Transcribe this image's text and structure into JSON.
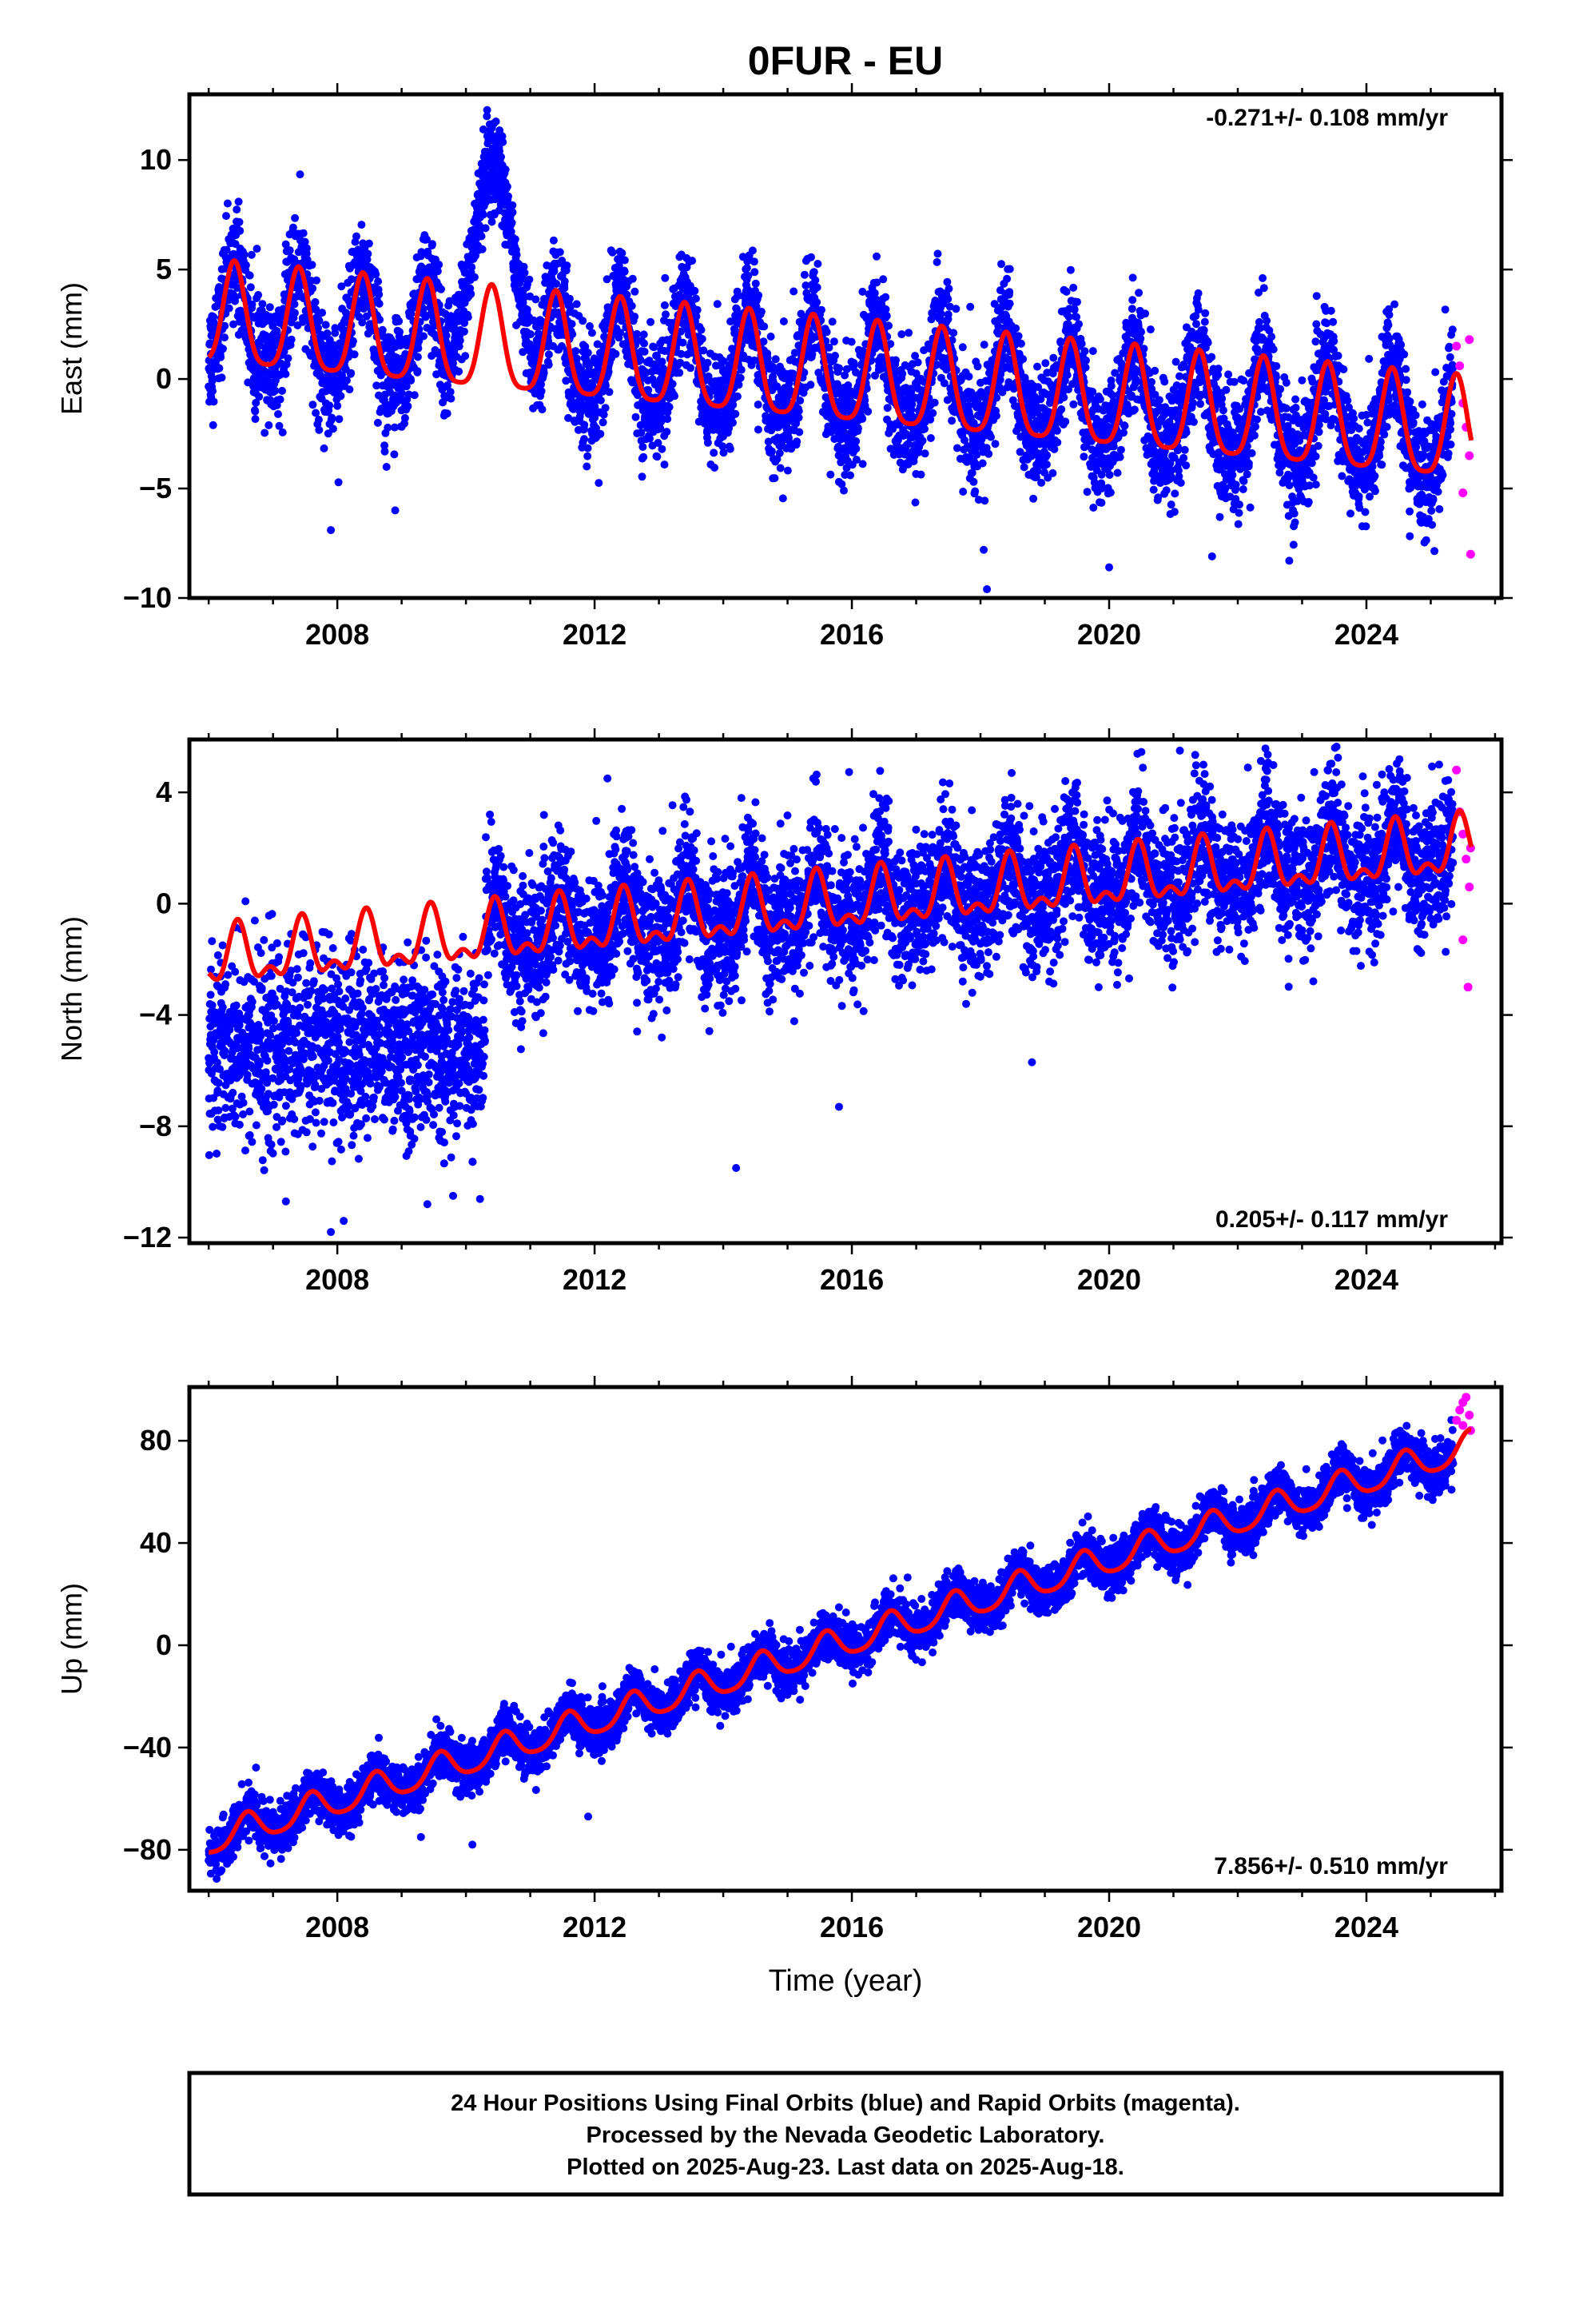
{
  "title": "0FUR - EU",
  "xlabel": "Time (year)",
  "colors": {
    "final": "#0000ff",
    "rapid": "#ff00ff",
    "model": "#ff0000",
    "frame": "#000000"
  },
  "footer": {
    "line1": "24 Hour Positions Using Final Orbits (blue) and Rapid Orbits (magenta).",
    "line2": "Processed by the Nevada Geodetic Laboratory.",
    "line3": "Plotted on 2025-Aug-23. Last data on 2025-Aug-18."
  },
  "chart_data": [
    {
      "type": "scatter",
      "name": "east",
      "ylabel": "East (mm)",
      "rate_label": "-0.271+/- 0.108 mm/yr",
      "rate_position": "top-right",
      "xlim": [
        2005.7,
        2026.1
      ],
      "ylim": [
        -10,
        13
      ],
      "xticks": [
        2008,
        2012,
        2016,
        2020,
        2024
      ],
      "xtick_labels": [
        "2008",
        "2012",
        "2016",
        "2020",
        "2024"
      ],
      "yticks": [
        -10,
        -5,
        0,
        5,
        10
      ],
      "ytick_labels": [
        "−10",
        "−5",
        "0",
        "5",
        "10"
      ],
      "data_start": 2006.0,
      "data_end": 2025.35,
      "rapid_start": 2025.35,
      "rapid_end": 2025.63,
      "model": {
        "rate": -0.271,
        "offset_at_2016": 0.0,
        "annual_amp": 2.3,
        "annual_peak": 0.4,
        "semiannual_amp": 0.5
      },
      "noise_mm": 1.3,
      "anomaly": {
        "start": 2009.7,
        "peak": 2010.45,
        "end": 2011.1,
        "peak_value": 10.5
      },
      "outliers": [
        [
          2018.05,
          -7.8
        ],
        [
          2018.1,
          -9.6
        ],
        [
          2007.9,
          -6.9
        ],
        [
          2008.9,
          -6.0
        ],
        [
          2021.6,
          -8.1
        ],
        [
          2022.8,
          -8.3
        ],
        [
          2020.0,
          -8.6
        ]
      ],
      "rapid_points": [
        [
          2025.4,
          1.5
        ],
        [
          2025.45,
          0.6
        ],
        [
          2025.5,
          -1.1
        ],
        [
          2025.55,
          -2.2
        ],
        [
          2025.6,
          -3.5
        ],
        [
          2025.5,
          -5.2
        ],
        [
          2025.62,
          -8.0
        ],
        [
          2025.6,
          1.8
        ]
      ]
    },
    {
      "type": "scatter",
      "name": "north",
      "ylabel": "North (mm)",
      "rate_label": "0.205+/- 0.117 mm/yr",
      "rate_position": "bottom-right",
      "xlim": [
        2005.7,
        2026.1
      ],
      "ylim": [
        -12.2,
        5.9
      ],
      "xticks": [
        2008,
        2012,
        2016,
        2020,
        2024
      ],
      "xtick_labels": [
        "2008",
        "2012",
        "2016",
        "2020",
        "2024"
      ],
      "yticks": [
        -12,
        -8,
        -4,
        0,
        4
      ],
      "ytick_labels": [
        "−12",
        "−8",
        "−4",
        "0",
        "4"
      ],
      "data_start": 2006.0,
      "data_end": 2025.35,
      "rapid_start": 2025.35,
      "rapid_end": 2025.63,
      "model": {
        "rate": 0.205,
        "offset_at_2016": 0.0,
        "annual_amp": 0.9,
        "annual_peak": 0.45,
        "semiannual_amp": 0.5
      },
      "noise_mm": 1.2,
      "early_segment": {
        "end": 2010.3,
        "mean": -5.2,
        "spread": 1.6
      },
      "outliers": [
        [
          2007.2,
          -10.7
        ],
        [
          2007.9,
          -11.8
        ],
        [
          2008.1,
          -11.4
        ],
        [
          2009.4,
          -10.8
        ],
        [
          2009.8,
          -10.5
        ],
        [
          2014.2,
          -9.5
        ],
        [
          2015.8,
          -7.3
        ],
        [
          2018.8,
          -5.7
        ],
        [
          2021.1,
          5.5
        ],
        [
          2012.2,
          4.5
        ],
        [
          2015.4,
          4.5
        ]
      ],
      "rapid_points": [
        [
          2025.4,
          4.8
        ],
        [
          2025.45,
          3.3
        ],
        [
          2025.5,
          2.5
        ],
        [
          2025.55,
          1.6
        ],
        [
          2025.6,
          0.6
        ],
        [
          2025.5,
          -1.3
        ],
        [
          2025.58,
          -3.0
        ],
        [
          2025.62,
          2.0
        ]
      ]
    },
    {
      "type": "scatter",
      "name": "up",
      "ylabel": "Up (mm)",
      "rate_label": "7.856+/- 0.510 mm/yr",
      "rate_position": "bottom-right",
      "xlim": [
        2005.7,
        2026.1
      ],
      "ylim": [
        -96,
        101
      ],
      "xticks": [
        2008,
        2012,
        2016,
        2020,
        2024
      ],
      "xtick_labels": [
        "2008",
        "2012",
        "2016",
        "2020",
        "2024"
      ],
      "yticks": [
        -80,
        -40,
        0,
        40,
        80
      ],
      "ytick_labels": [
        "−80",
        "−40",
        "0",
        "40",
        "80"
      ],
      "data_start": 2006.0,
      "data_end": 2025.35,
      "rapid_start": 2025.35,
      "rapid_end": 2025.63,
      "model": {
        "rate": 7.856,
        "offset_at_2016": 2.0,
        "annual_amp": 5.8,
        "annual_peak": 0.6,
        "semiannual_amp": 1.0
      },
      "noise_mm": 4.5,
      "outliers": [
        [
          2006.2,
          -88.0
        ],
        [
          2009.3,
          -75.0
        ],
        [
          2010.1,
          -78.0
        ],
        [
          2011.9,
          -67.0
        ]
      ],
      "rapid_points": [
        [
          2025.4,
          88.0
        ],
        [
          2025.45,
          92.0
        ],
        [
          2025.5,
          95.0
        ],
        [
          2025.55,
          97.0
        ],
        [
          2025.6,
          90.0
        ],
        [
          2025.62,
          84.0
        ],
        [
          2025.5,
          86.0
        ]
      ]
    }
  ]
}
